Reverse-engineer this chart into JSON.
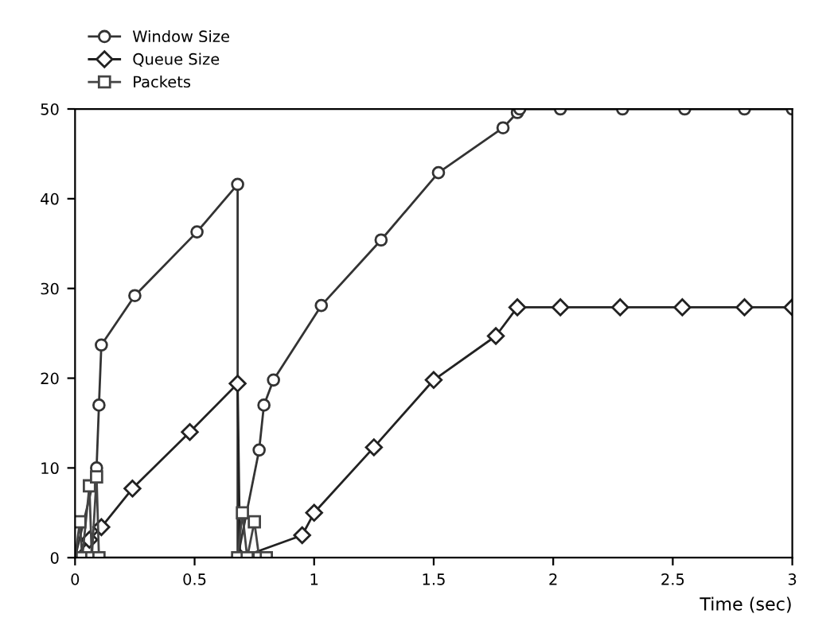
{
  "chart_data": {
    "type": "line",
    "xlabel": "Time (sec)",
    "xlim": [
      0,
      3
    ],
    "xticks": [
      0,
      0.5,
      1,
      1.5,
      2,
      2.5,
      3
    ],
    "ylim": [
      0,
      50
    ],
    "yticks": [
      0,
      10,
      20,
      30,
      40,
      50
    ],
    "grid": false,
    "legend": "top left",
    "series": [
      {
        "name": "Window Size",
        "color": "#333333",
        "marker": "circle",
        "x": [
          0,
          0.09,
          0.1,
          0.11,
          0.25,
          0.51,
          0.68,
          0.68,
          0.77,
          0.79,
          0.83,
          1.03,
          1.28,
          1.52,
          1.79,
          1.85,
          1.86,
          2.03,
          2.29,
          2.55,
          2.8,
          3
        ],
        "values": [
          0,
          10,
          17,
          23.7,
          29.2,
          36.3,
          41.6,
          0,
          12,
          17,
          19.8,
          28.1,
          35.4,
          42.9,
          47.9,
          49.6,
          50,
          50,
          50,
          50,
          50,
          50
        ]
      },
      {
        "name": "Queue Size",
        "color": "#222222",
        "marker": "diamond",
        "x": [
          0,
          0.06,
          0.11,
          0.24,
          0.48,
          0.68,
          0.69,
          0.95,
          1.0,
          1.25,
          1.5,
          1.76,
          1.85,
          2.03,
          2.28,
          2.54,
          2.8,
          3
        ],
        "values": [
          0,
          2,
          3.4,
          7.7,
          14,
          19.4,
          0,
          2.5,
          5,
          12.3,
          19.8,
          24.7,
          27.9,
          27.9,
          27.9,
          27.9,
          27.9,
          27.9
        ]
      },
      {
        "name": "Packets",
        "color": "#444444",
        "marker": "square",
        "x": [
          0,
          0.02,
          0.03,
          0.06,
          0.07,
          0.09,
          0.1,
          0.68,
          0.7,
          0.72,
          0.75,
          0.77,
          0.8
        ],
        "values": [
          0,
          4,
          0,
          8,
          0,
          9,
          0,
          0,
          5,
          0,
          4,
          0,
          0
        ]
      }
    ]
  }
}
